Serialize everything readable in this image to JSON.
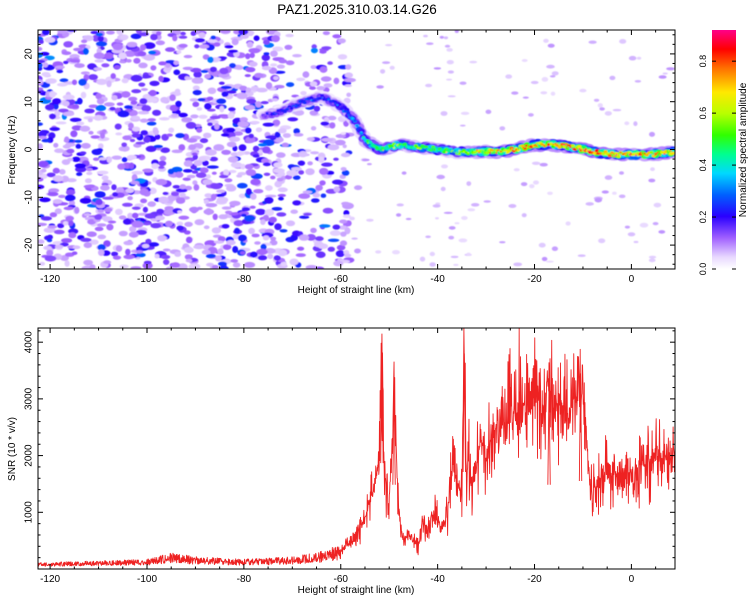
{
  "title": "PAZ1.2025.310.03.14.G26",
  "chart_data": [
    {
      "type": "heatmap",
      "name": "spectrogram",
      "xlabel": "Height of straight line (km)",
      "ylabel": "Frequency (Hz)",
      "xlim": [
        -122.5,
        9
      ],
      "ylim": [
        -25,
        25
      ],
      "xticks": [
        -120,
        -100,
        -80,
        -60,
        -40,
        -20,
        0
      ],
      "yticks": [
        -20,
        -10,
        0,
        10,
        20
      ],
      "colorbar": {
        "label": "Normalized spectral amplitude",
        "range": [
          0.0,
          0.92
        ],
        "ticks": [
          0.0,
          0.2,
          0.4,
          0.6,
          0.8
        ],
        "tick_labels": [
          "0.0",
          "0.2",
          "0.4",
          "0.6",
          "0.8"
        ]
      },
      "noise_region_km": [
        -122.5,
        -60
      ],
      "noise_amplitude_range": [
        0.05,
        0.25
      ],
      "signal_trace": {
        "height_km": [
          -76,
          -72,
          -68,
          -64,
          -60,
          -57,
          -55,
          -52,
          -48,
          -44,
          -40,
          -36,
          -32,
          -28,
          -24,
          -20,
          -16,
          -12,
          -8,
          -4,
          0,
          4,
          9
        ],
        "frequency_hz": [
          7,
          8,
          10,
          11,
          9,
          6,
          2,
          0,
          1,
          0.5,
          0,
          -0.5,
          -0.5,
          -0.5,
          0,
          1,
          1,
          0.5,
          -0.5,
          -1,
          -1,
          -1,
          -0.5
        ],
        "amplitude": [
          0.2,
          0.25,
          0.3,
          0.25,
          0.3,
          0.35,
          0.45,
          0.6,
          0.6,
          0.55,
          0.6,
          0.55,
          0.7,
          0.75,
          0.8,
          0.85,
          0.8,
          0.85,
          0.9,
          0.85,
          0.85,
          0.8,
          0.75
        ]
      }
    },
    {
      "type": "line",
      "name": "snr",
      "xlabel": "Height of straight line (km)",
      "ylabel": "SNR (10 * v/v)",
      "xlim": [
        -122.5,
        9
      ],
      "ylim": [
        0,
        4250
      ],
      "xticks": [
        -120,
        -100,
        -80,
        -60,
        -40,
        -20,
        0
      ],
      "yticks": [
        1000,
        2000,
        3000,
        4000
      ],
      "color": "#ee2222",
      "series": [
        {
          "name": "SNR",
          "x": [
            -122,
            -110,
            -100,
            -95,
            -90,
            -80,
            -70,
            -65,
            -60,
            -57,
            -55,
            -53,
            -52,
            -51.5,
            -51,
            -50,
            -49,
            -48,
            -47,
            -46,
            -45,
            -44,
            -43,
            -42,
            -41,
            -40,
            -39,
            -38,
            -37,
            -36,
            -35,
            -34.5,
            -34,
            -33.5,
            -33,
            -32,
            -31,
            -30,
            -29,
            -28,
            -27,
            -26,
            -25,
            -24,
            -23,
            -22,
            -21,
            -20,
            -19,
            -18,
            -17,
            -16,
            -15,
            -14,
            -13,
            -12,
            -11,
            -10.5,
            -10,
            -9,
            -8.5,
            -8,
            -7,
            -6,
            -5,
            -4,
            -3,
            -2,
            -1,
            0,
            1,
            2,
            3,
            4,
            5,
            6,
            7,
            8,
            9
          ],
          "y": [
            80,
            100,
            120,
            200,
            150,
            120,
            150,
            200,
            300,
            550,
            900,
            1400,
            2100,
            4150,
            1700,
            1000,
            3300,
            900,
            500,
            600,
            500,
            400,
            800,
            700,
            1000,
            900,
            700,
            1000,
            1800,
            1500,
            1400,
            3800,
            1500,
            2000,
            1300,
            1800,
            2300,
            2000,
            2200,
            2500,
            2600,
            2400,
            2900,
            2700,
            3100,
            2800,
            2900,
            3200,
            3000,
            2800,
            3300,
            3100,
            2900,
            2800,
            2700,
            3000,
            2900,
            3450,
            3200,
            2100,
            1500,
            1300,
            1500,
            1600,
            1700,
            1600,
            1800,
            1700,
            1600,
            1800,
            1500,
            1900,
            2000,
            1700,
            2100,
            1800,
            2000,
            1900,
            2100
          ]
        }
      ]
    }
  ]
}
